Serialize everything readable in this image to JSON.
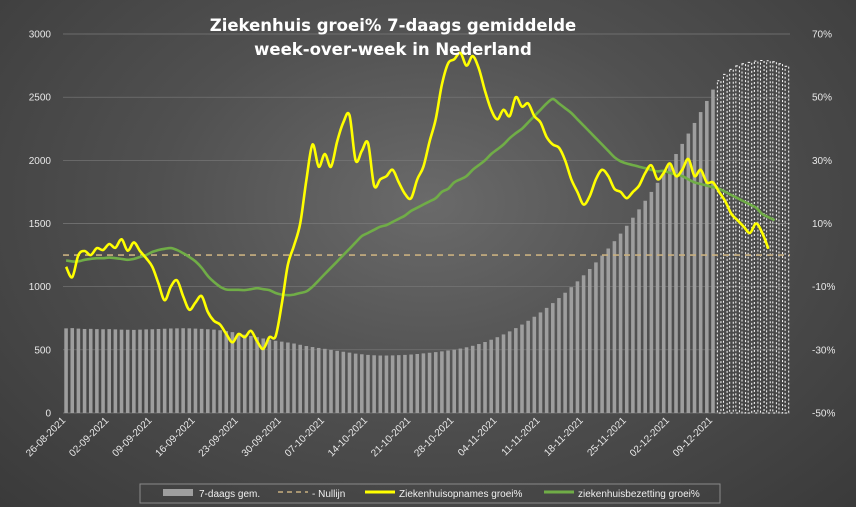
{
  "chart_data": {
    "type": "bar+line",
    "title_lines": [
      "Ziekenhuis groei% 7-daags gemiddelde",
      "week-over-week in Nederland"
    ],
    "y_left": {
      "range": [
        0,
        3000
      ],
      "ticks": [
        "0",
        "500",
        "1000",
        "1500",
        "2000",
        "2500",
        "3000"
      ]
    },
    "y_right": {
      "range": [
        -50,
        70
      ],
      "ticks": [
        "-50%",
        "-30%",
        "-10%",
        "10%",
        "30%",
        "50%",
        "70%"
      ]
    },
    "x_tick_labels": [
      "26-08-2021",
      "02-09-2021",
      "09-09-2021",
      "16-09-2021",
      "23-09-2021",
      "30-09-2021",
      "07-10-2021",
      "14-10-2021",
      "21-10-2021",
      "28-10-2021",
      "04-11-2021",
      "11-11-2021",
      "18-11-2021",
      "25-11-2021",
      "02-12-2021",
      "09-12-2021"
    ],
    "start_date": "2021-08-26",
    "days": 106,
    "legend": [
      "7-daags gem.",
      "- Nullijn",
      "Ziekenhuisopnames groei%",
      "ziekenhuisbezetting groei%"
    ],
    "colors": {
      "bars": "#9e9e9e",
      "bars_dashed": "#ffffff",
      "zero_line": "#c9b080",
      "admissions": "#ffff00",
      "occupancy": "#70ad47"
    },
    "bars_7day_avg": [
      670,
      672,
      668,
      665,
      666,
      664,
      663,
      664,
      662,
      660,
      659,
      658,
      660,
      662,
      663,
      665,
      667,
      669,
      670,
      671,
      670,
      668,
      666,
      663,
      660,
      655,
      648,
      640,
      630,
      620,
      610,
      600,
      590,
      580,
      572,
      565,
      558,
      550,
      540,
      530,
      522,
      515,
      508,
      500,
      492,
      485,
      478,
      470,
      465,
      460,
      457,
      455,
      455,
      456,
      458,
      460,
      463,
      467,
      472,
      477,
      482,
      488,
      495,
      502,
      510,
      520,
      532,
      546,
      562,
      580,
      600,
      622,
      646,
      672,
      700,
      730,
      762,
      796,
      832,
      870,
      910,
      952,
      996,
      1042,
      1090,
      1140,
      1192,
      1246,
      1302,
      1360,
      1420,
      1482,
      1546,
      1612,
      1680,
      1750,
      1822,
      1896,
      1972,
      2050,
      2130,
      2212,
      2296,
      2382,
      2470,
      2560,
      2630,
      2680,
      2720,
      2748,
      2765,
      2775,
      2785,
      2790,
      2788,
      2780,
      2765,
      2745
    ],
    "bars_dashed_from_index": 106,
    "admissions_growth_pct": [
      -3.7,
      -7,
      0,
      1.3,
      0,
      2.2,
      1.6,
      3.5,
      2.3,
      5,
      1.4,
      4,
      1.3,
      -1,
      -3.7,
      -9,
      -14.3,
      -10,
      -8,
      -13,
      -17.3,
      -15,
      -13,
      -18,
      -20.8,
      -22,
      -25,
      -27.6,
      -25,
      -26,
      -24,
      -27.3,
      -29.7,
      -26,
      -25.7,
      -15.6,
      -3,
      3,
      10,
      23.8,
      35,
      28,
      32,
      28,
      36,
      42,
      44.3,
      30,
      33,
      35.5,
      22,
      24,
      25,
      27,
      23,
      19.4,
      18,
      24,
      28,
      36,
      43,
      54,
      60.7,
      62,
      64,
      60,
      63,
      59,
      52,
      46,
      43,
      46,
      44,
      50,
      47,
      48,
      44,
      42,
      37.4,
      35,
      34,
      30,
      24,
      20,
      16,
      18.7,
      24,
      27,
      25,
      21,
      20,
      18,
      20,
      22,
      26,
      28.4,
      24,
      26,
      29,
      25,
      27,
      30.4,
      25,
      27,
      23,
      23,
      20,
      17,
      13,
      11,
      9,
      7,
      10,
      7,
      2
    ],
    "occupancy_growth_pct": [
      -1.7,
      -2,
      -2,
      -1.5,
      -1.2,
      -1,
      -1,
      -0.8,
      -1,
      -1.2,
      -1.5,
      -1.2,
      -0.6,
      0,
      1,
      1.6,
      2,
      2.2,
      1.6,
      0.6,
      -0.6,
      -2,
      -4,
      -6.6,
      -8.5,
      -10,
      -10.9,
      -11,
      -11,
      -11.1,
      -10.8,
      -10.5,
      -10.8,
      -11.1,
      -12,
      -12.5,
      -12.7,
      -12.5,
      -12,
      -11.5,
      -10,
      -8,
      -6,
      -4,
      -2,
      0,
      2,
      4,
      6,
      7,
      8,
      9,
      9.5,
      10.5,
      11.5,
      12.5,
      14,
      15,
      16,
      17,
      18,
      20,
      21,
      23,
      24,
      25,
      27,
      28.5,
      30,
      32,
      33.5,
      35,
      37,
      38.6,
      40,
      42,
      44,
      46,
      48,
      49.4,
      48,
      46.5,
      45,
      43,
      41,
      39,
      37,
      35,
      33,
      31,
      29.7,
      29,
      28.5,
      28,
      27.5,
      27,
      26.5,
      26.7,
      26,
      25.5,
      25,
      24,
      23,
      22.5,
      22,
      21.5,
      21,
      20,
      19,
      18,
      17,
      16,
      15,
      13,
      12,
      11
    ]
  }
}
